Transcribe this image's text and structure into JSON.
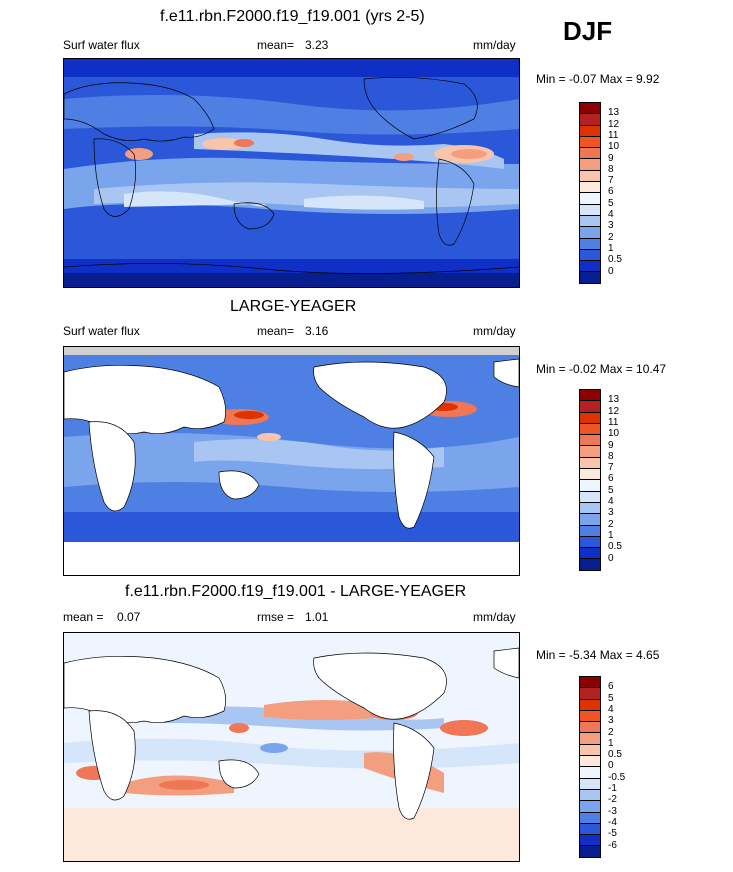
{
  "season": "DJF",
  "colors": {
    "levels13": [
      "#8b0000",
      "#b22222",
      "#dd3300",
      "#ee5522",
      "#f07755",
      "#f49e80",
      "#f8c4aa",
      "#fde8dc",
      "#d5e6fb",
      "#a9c6f3",
      "#7aa4eb",
      "#4e80e3",
      "#2a58d8",
      "#0f2fc7",
      "#071e8f"
    ],
    "levels6": [
      "#8b0000",
      "#b22222",
      "#dd3300",
      "#ee5522",
      "#f07755",
      "#f49e80",
      "#f8c4aa",
      "#fde8dc",
      "#eef5fe",
      "#d5e6fb",
      "#a9c6f3",
      "#7aa4eb",
      "#4e80e3",
      "#2a58d8",
      "#0f2fc7",
      "#071e8f"
    ]
  },
  "panel1": {
    "title": "f.e11.rbn.F2000.f19_f19.001 (yrs 2-5)",
    "left_label": "Surf water flux",
    "mean_label": "mean=",
    "mean_value": "3.23",
    "units": "mm/day",
    "minmax": "Min =  -0.07 Max =   9.92",
    "colorbar_labels": [
      "13",
      "12",
      "11",
      "10",
      "9",
      "8",
      "7",
      "6",
      "5",
      "4",
      "3",
      "2",
      "1",
      "0.5",
      "0"
    ]
  },
  "panel2": {
    "title": "LARGE-YEAGER",
    "left_label": "Surf water flux",
    "mean_label": "mean=",
    "mean_value": "3.16",
    "units": "mm/day",
    "minmax": "Min =  -0.02 Max =  10.47",
    "colorbar_labels": [
      "13",
      "12",
      "11",
      "10",
      "9",
      "8",
      "7",
      "6",
      "5",
      "4",
      "3",
      "2",
      "1",
      "0.5",
      "0"
    ]
  },
  "panel3": {
    "title": "f.e11.rbn.F2000.f19_f19.001 - LARGE-YEAGER",
    "mean_label": "mean =",
    "mean_value": "0.07",
    "rmse_label": "rmse =",
    "rmse_value": "1.01",
    "units": "mm/day",
    "minmax": "Min =  -5.34 Max =   4.65",
    "colorbar_labels": [
      "6",
      "5",
      "4",
      "3",
      "2",
      "1",
      "0.5",
      "0",
      "-0.5",
      "-1",
      "-2",
      "-3",
      "-4",
      "-5",
      "-6"
    ]
  }
}
